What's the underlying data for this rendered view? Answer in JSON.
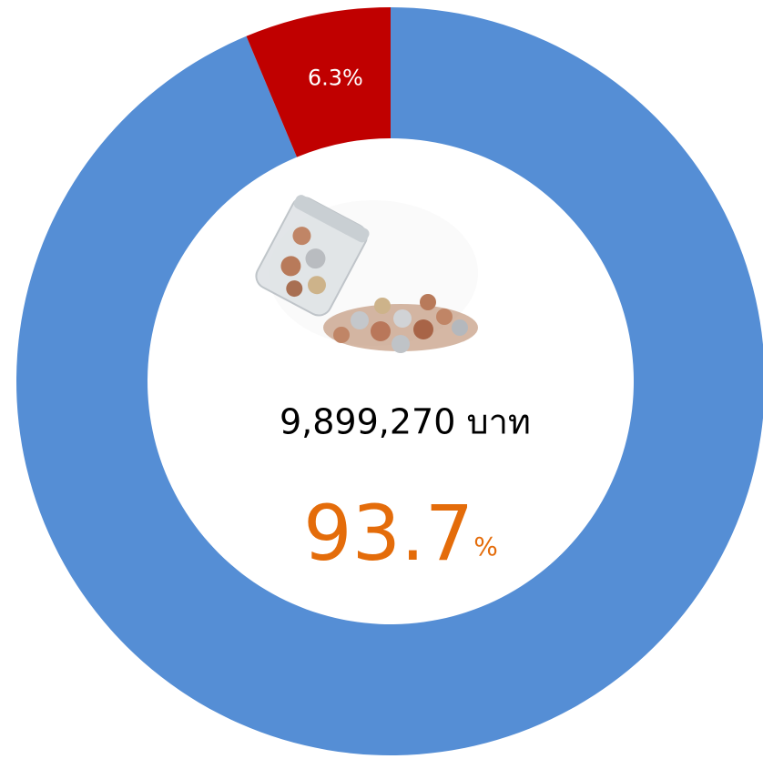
{
  "chart_data": {
    "type": "pie",
    "donut": true,
    "categories": [
      null,
      null
    ],
    "values": [
      93.7,
      6.3
    ],
    "value_labels": [
      null,
      "6.3%"
    ],
    "colors": [
      "#558ed5",
      "#c00000"
    ],
    "center_text": "9,899,270 บาท",
    "center_value_color": "#e46c0a",
    "center_unit": "%"
  }
}
